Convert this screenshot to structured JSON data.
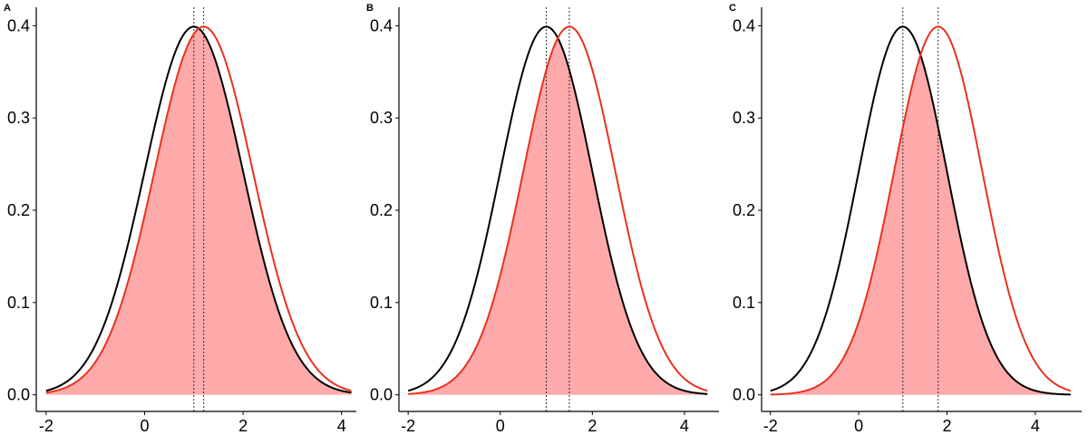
{
  "chart_data": [
    {
      "type": "area",
      "panel_label": "A",
      "title": "",
      "xlabel": "",
      "ylabel": "",
      "xlim": [
        -2.2,
        4.3
      ],
      "ylim": [
        -0.018,
        0.42
      ],
      "xticks": [
        -2,
        0,
        2,
        4
      ],
      "xtick_labels": [
        "-2",
        "0",
        "2",
        "4"
      ],
      "yticks": [
        0.0,
        0.1,
        0.2,
        0.3,
        0.4
      ],
      "ytick_labels": [
        "0.0",
        "0.1",
        "0.2",
        "0.3",
        "0.4"
      ],
      "grid": false,
      "legend": "none",
      "series": [
        {
          "color": "#000000",
          "mean": 1.0,
          "sd": 1.0,
          "x_range": [
            -2.0,
            4.2
          ],
          "fill": false
        },
        {
          "color": "#e8321e",
          "mean": 1.2,
          "sd": 1.0,
          "x_range": [
            -2.0,
            4.2
          ],
          "fill": true,
          "fill_color": "#ffaaaa",
          "fill_under": "min"
        }
      ],
      "vlines": [
        1.0,
        1.2
      ]
    },
    {
      "type": "area",
      "panel_label": "B",
      "title": "",
      "xlabel": "",
      "ylabel": "",
      "xlim": [
        -2.2,
        4.75
      ],
      "ylim": [
        -0.018,
        0.42
      ],
      "xticks": [
        -2,
        0,
        2,
        4
      ],
      "xtick_labels": [
        "-2",
        "0",
        "2",
        "4"
      ],
      "yticks": [
        0.0,
        0.1,
        0.2,
        0.3,
        0.4
      ],
      "ytick_labels": [
        "0.0",
        "0.1",
        "0.2",
        "0.3",
        "0.4"
      ],
      "grid": false,
      "legend": "none",
      "series": [
        {
          "color": "#000000",
          "mean": 1.0,
          "sd": 1.0,
          "x_range": [
            -2.0,
            4.5
          ],
          "fill": false
        },
        {
          "color": "#e8321e",
          "mean": 1.5,
          "sd": 1.0,
          "x_range": [
            -2.0,
            4.5
          ],
          "fill": true,
          "fill_color": "#ffaaaa",
          "fill_under": "min"
        }
      ],
      "vlines": [
        1.0,
        1.5
      ]
    },
    {
      "type": "area",
      "panel_label": "C",
      "title": "",
      "xlabel": "",
      "ylabel": "",
      "xlim": [
        -2.2,
        5.05
      ],
      "ylim": [
        -0.018,
        0.42
      ],
      "xticks": [
        -2,
        0,
        2,
        4
      ],
      "xtick_labels": [
        "-2",
        "0",
        "2",
        "4"
      ],
      "yticks": [
        0.0,
        0.1,
        0.2,
        0.3,
        0.4
      ],
      "ytick_labels": [
        "0.0",
        "0.1",
        "0.2",
        "0.3",
        "0.4"
      ],
      "grid": false,
      "legend": "none",
      "series": [
        {
          "color": "#000000",
          "mean": 1.0,
          "sd": 1.0,
          "x_range": [
            -2.0,
            4.8
          ],
          "fill": false
        },
        {
          "color": "#e8321e",
          "mean": 1.8,
          "sd": 1.0,
          "x_range": [
            -2.0,
            4.8
          ],
          "fill": true,
          "fill_color": "#ffaaaa",
          "fill_under": "min"
        }
      ],
      "vlines": [
        1.0,
        1.8
      ]
    }
  ]
}
